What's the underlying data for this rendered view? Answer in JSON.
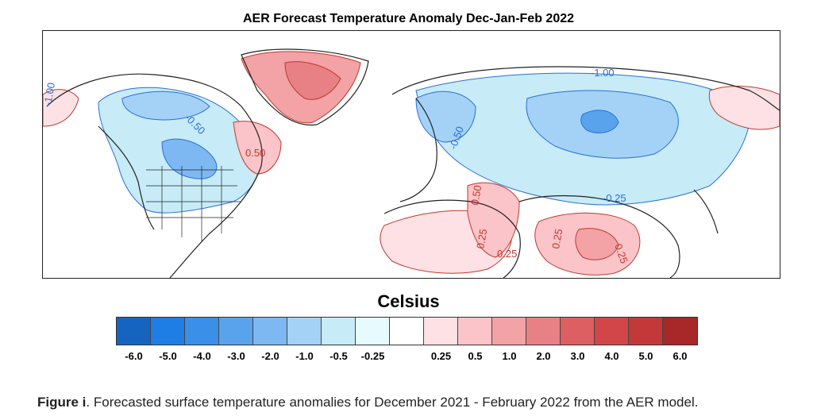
{
  "title": "AER Forecast Temperature Anomaly Dec-Jan-Feb 2022",
  "units_label": "Celsius",
  "colorbar": {
    "colors": [
      "#1565c0",
      "#1e7ee6",
      "#3a8fe8",
      "#58a3ec",
      "#7db8f2",
      "#a4d2f7",
      "#c7ebf7",
      "#e6fbfd",
      "#ffffff",
      "#fde1e5",
      "#fbc4c9",
      "#f3a2a6",
      "#e78185",
      "#dd5f62",
      "#d24649",
      "#c5383a",
      "#a82728"
    ],
    "tick_labels": [
      "-6.0",
      "-5.0",
      "-4.0",
      "-3.0",
      "-2.0",
      "-1.0",
      "-0.5",
      "-0.25",
      "0.25",
      "0.5",
      "1.0",
      "2.0",
      "3.0",
      "4.0",
      "5.0",
      "6.0"
    ]
  },
  "map": {
    "contour_labels": [
      {
        "text": "-1.00",
        "color": "#2a6fd6"
      },
      {
        "text": "-0.50",
        "color": "#2a6fd6"
      },
      {
        "text": "-0.25",
        "color": "#2a6fd6"
      },
      {
        "text": "-0.50",
        "color": "#2a6fd6"
      },
      {
        "text": "-1.00",
        "color": "#2a6fd6"
      },
      {
        "text": "0.50",
        "color": "#c0392b"
      },
      {
        "text": "0.50",
        "color": "#c0392b"
      },
      {
        "text": "0.25",
        "color": "#c0392b"
      },
      {
        "text": "0.25",
        "color": "#c0392b"
      },
      {
        "text": "0.25",
        "color": "#c0392b"
      },
      {
        "text": "0.25",
        "color": "#c0392b"
      }
    ]
  },
  "caption": {
    "label": "Figure i",
    "text": ".  Forecasted surface temperature anomalies for December 2021 - February 2022 from the AER model."
  }
}
